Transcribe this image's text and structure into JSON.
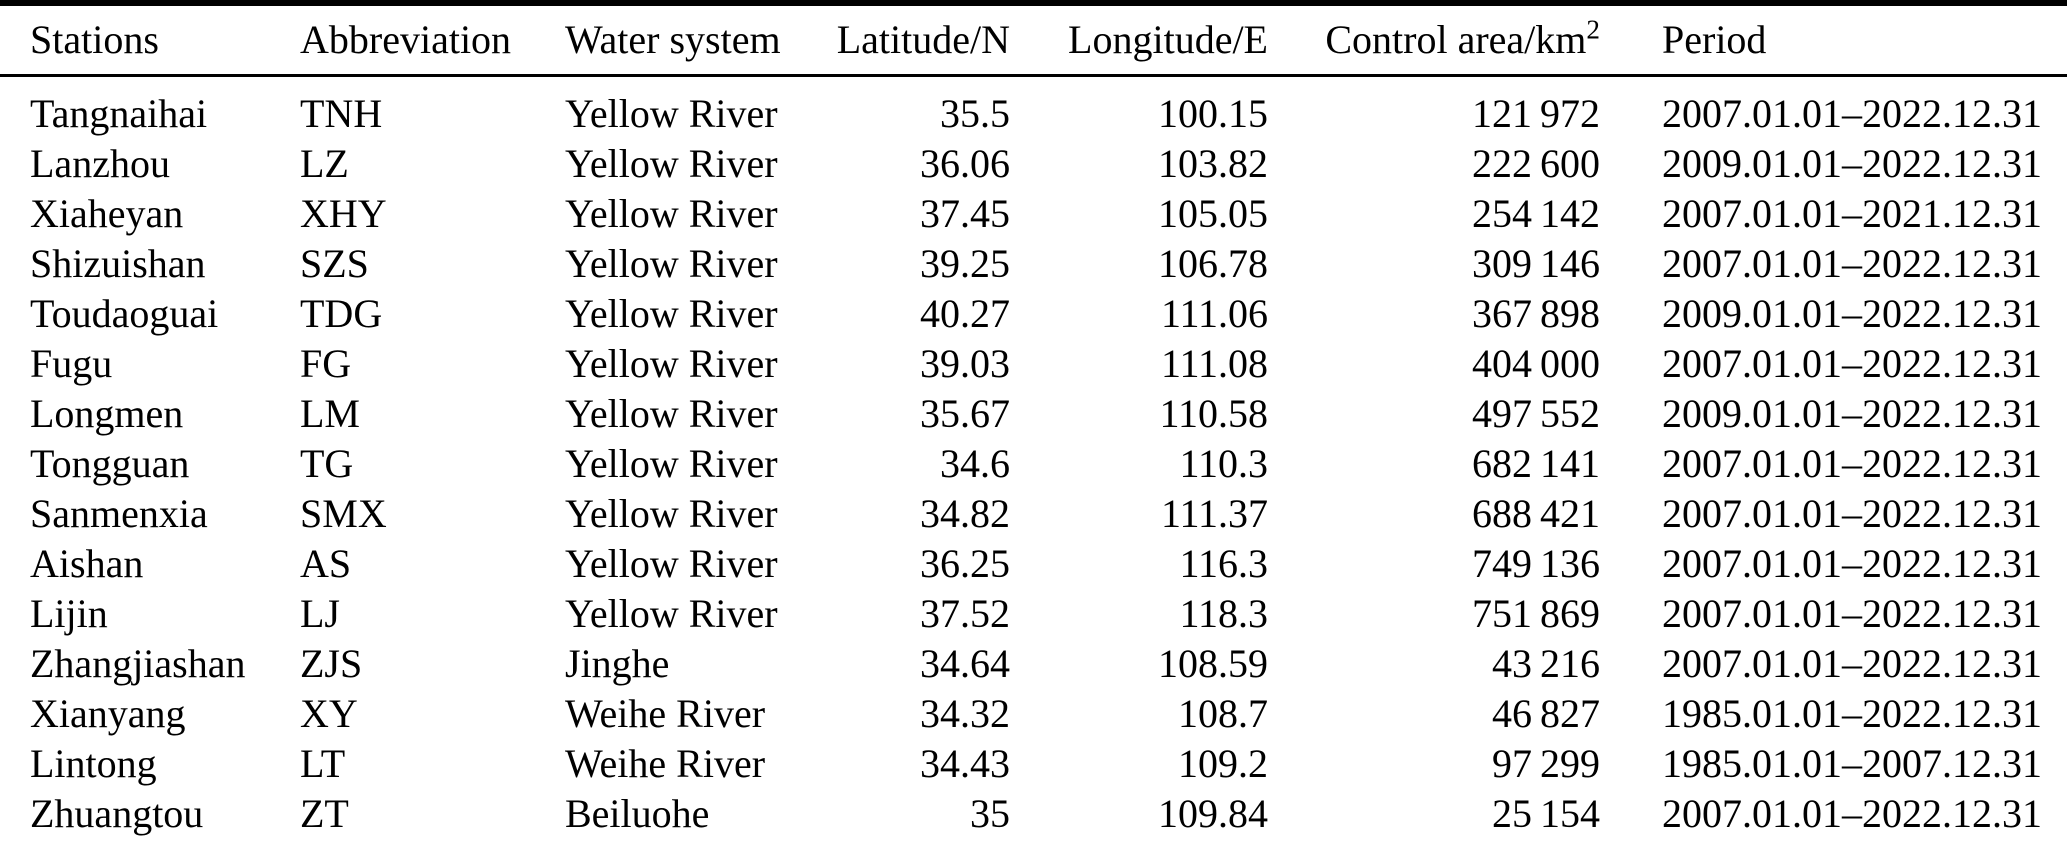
{
  "table": {
    "columns": [
      {
        "key": "stations",
        "label": "Stations",
        "align": "left"
      },
      {
        "key": "abbreviation",
        "label": "Abbreviation",
        "align": "left"
      },
      {
        "key": "water-system",
        "label": "Water system",
        "align": "left"
      },
      {
        "key": "latitude",
        "label": "Latitude/N",
        "align": "right"
      },
      {
        "key": "longitude",
        "label": "Longitude/E",
        "align": "right"
      },
      {
        "key": "control-area",
        "label": "Control area/km",
        "sup": "2",
        "align": "right"
      },
      {
        "key": "period",
        "label": "Period",
        "align": "left"
      }
    ],
    "rows": [
      [
        "Tangnaihai",
        "TNH",
        "Yellow River",
        "35.5",
        "100.15",
        "121 972",
        "2007.01.01–2022.12.31"
      ],
      [
        "Lanzhou",
        "LZ",
        "Yellow River",
        "36.06",
        "103.82",
        "222 600",
        "2009.01.01–2022.12.31"
      ],
      [
        "Xiaheyan",
        "XHY",
        "Yellow River",
        "37.45",
        "105.05",
        "254 142",
        "2007.01.01–2021.12.31"
      ],
      [
        "Shizuishan",
        "SZS",
        "Yellow River",
        "39.25",
        "106.78",
        "309 146",
        "2007.01.01–2022.12.31"
      ],
      [
        "Toudaoguai",
        "TDG",
        "Yellow River",
        "40.27",
        "111.06",
        "367 898",
        "2009.01.01–2022.12.31"
      ],
      [
        "Fugu",
        "FG",
        "Yellow River",
        "39.03",
        "111.08",
        "404 000",
        "2007.01.01–2022.12.31"
      ],
      [
        "Longmen",
        "LM",
        "Yellow River",
        "35.67",
        "110.58",
        "497 552",
        "2009.01.01–2022.12.31"
      ],
      [
        "Tongguan",
        "TG",
        "Yellow River",
        "34.6",
        "110.3",
        "682 141",
        "2007.01.01–2022.12.31"
      ],
      [
        "Sanmenxia",
        "SMX",
        "Yellow River",
        "34.82",
        "111.37",
        "688 421",
        "2007.01.01–2022.12.31"
      ],
      [
        "Aishan",
        "AS",
        "Yellow River",
        "36.25",
        "116.3",
        "749 136",
        "2007.01.01–2022.12.31"
      ],
      [
        "Lijin",
        "LJ",
        "Yellow River",
        "37.52",
        "118.3",
        "751 869",
        "2007.01.01–2022.12.31"
      ],
      [
        "Zhangjiashan",
        "ZJS",
        "Jinghe",
        "34.64",
        "108.59",
        "43 216",
        "2007.01.01–2022.12.31"
      ],
      [
        "Xianyang",
        "XY",
        "Weihe River",
        "34.32",
        "108.7",
        "46 827",
        "1985.01.01–2022.12.31"
      ],
      [
        "Lintong",
        "LT",
        "Weihe River",
        "34.43",
        "109.2",
        "97 299",
        "1985.01.01–2007.12.31"
      ],
      [
        "Zhuangtou",
        "ZT",
        "Beiluohe",
        "35",
        "109.84",
        "25 154",
        "2007.01.01–2022.12.31"
      ]
    ]
  }
}
